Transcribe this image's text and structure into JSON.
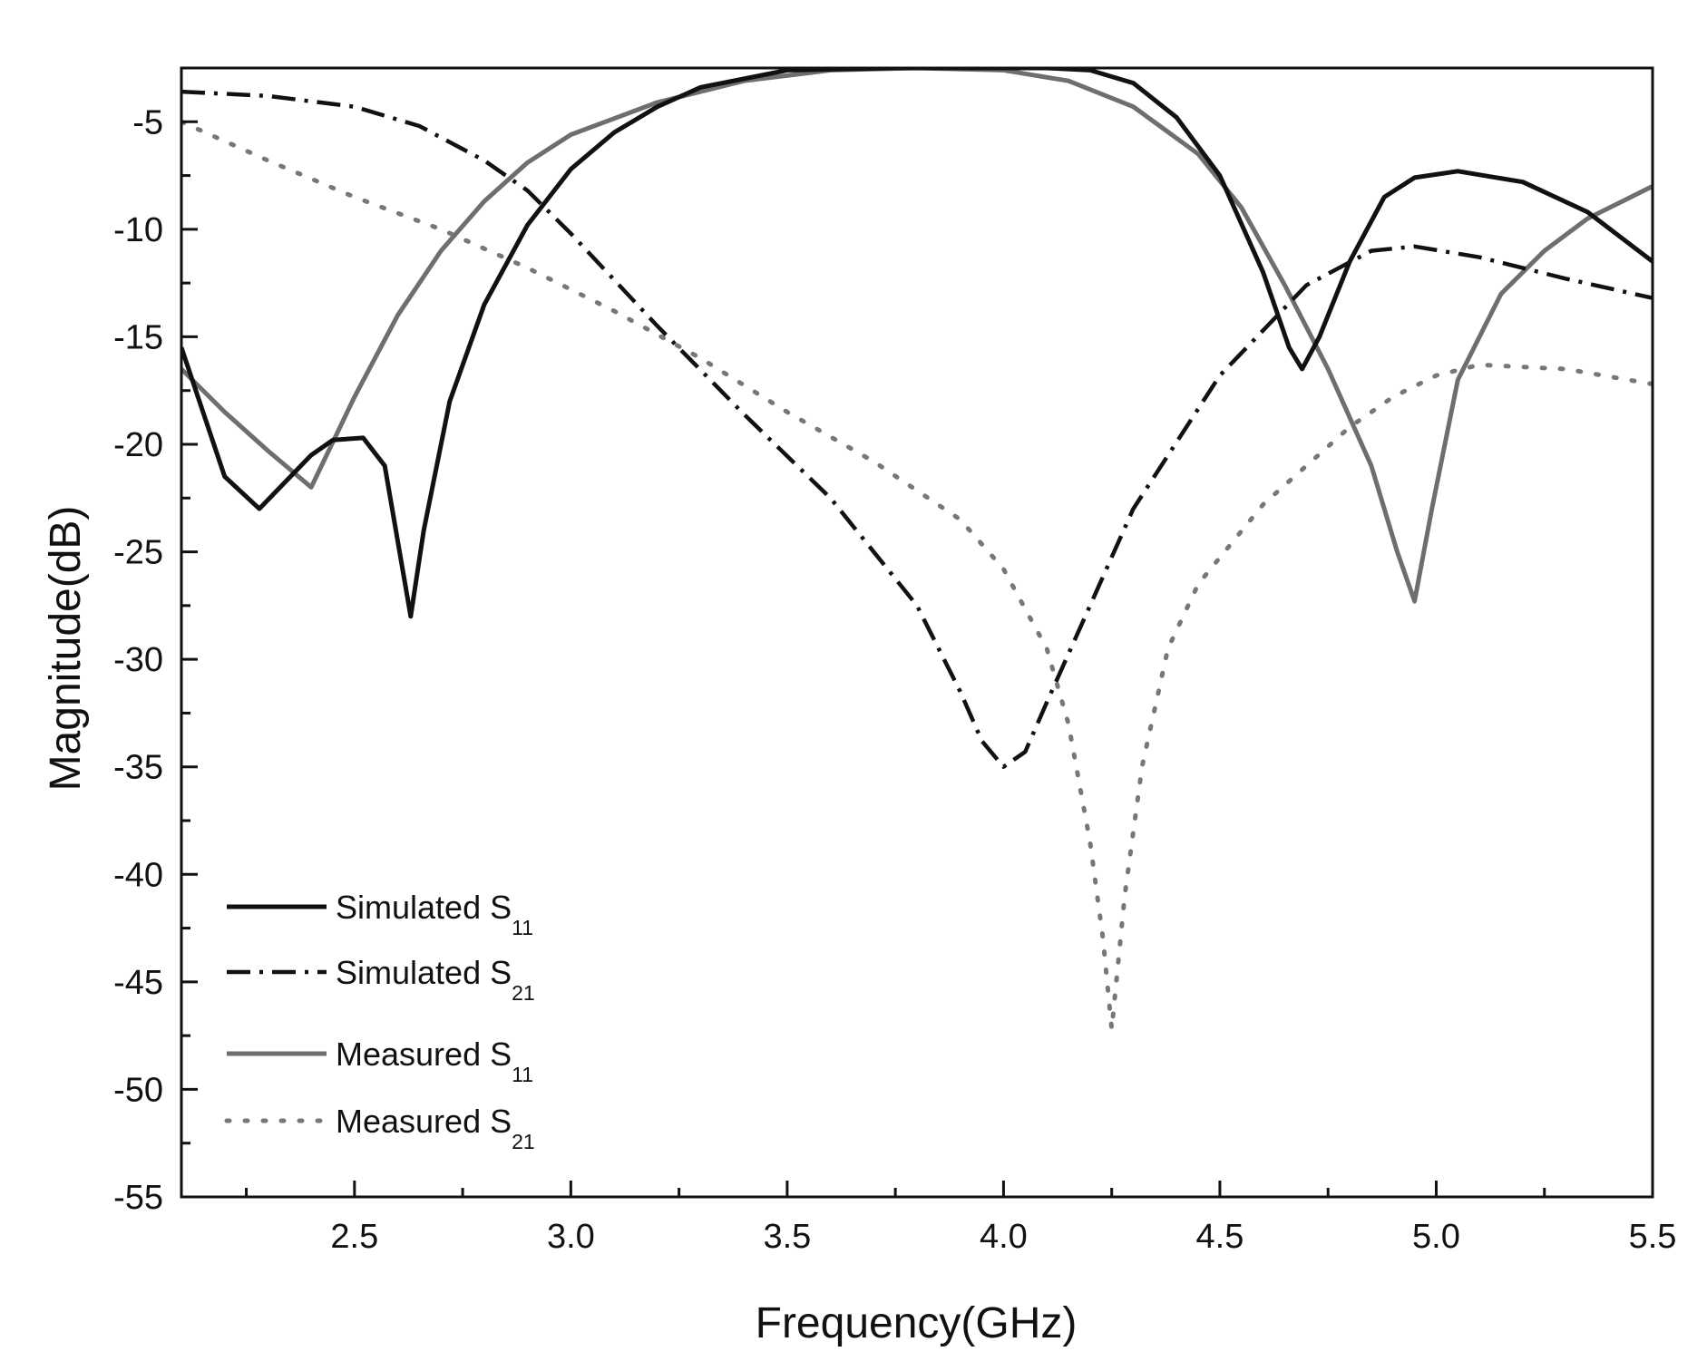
{
  "chart_data": {
    "type": "line",
    "title": "",
    "xlabel": "Frequency(GHz)",
    "ylabel": "Magnitude(dB)",
    "xlim": [
      2.1,
      5.5
    ],
    "ylim": [
      -55,
      -2.5
    ],
    "grid": false,
    "legend_position": "bottom-left",
    "x_ticks": [
      {
        "value": 2.5,
        "label": "2.5"
      },
      {
        "value": 3.0,
        "label": "3.0"
      },
      {
        "value": 3.5,
        "label": "3.5"
      },
      {
        "value": 4.0,
        "label": "4.0"
      },
      {
        "value": 4.5,
        "label": "4.5"
      },
      {
        "value": 5.0,
        "label": "5.0"
      },
      {
        "value": 5.5,
        "label": "5.5"
      }
    ],
    "y_ticks": [
      {
        "value": -5,
        "label": "-5"
      },
      {
        "value": -10,
        "label": "-10"
      },
      {
        "value": -15,
        "label": "-15"
      },
      {
        "value": -20,
        "label": "-20"
      },
      {
        "value": -25,
        "label": "-25"
      },
      {
        "value": -30,
        "label": "-30"
      },
      {
        "value": -35,
        "label": "-35"
      },
      {
        "value": -40,
        "label": "-40"
      },
      {
        "value": -45,
        "label": "-45"
      },
      {
        "value": -50,
        "label": "-50"
      },
      {
        "value": -55,
        "label": "-55"
      }
    ],
    "series": [
      {
        "name": "Simulated S11",
        "label_main": "Simulated S",
        "label_sub": "11",
        "style": "solid",
        "color": "#111111",
        "points": [
          [
            2.1,
            -15.5
          ],
          [
            2.2,
            -21.5
          ],
          [
            2.28,
            -23
          ],
          [
            2.4,
            -20.5
          ],
          [
            2.45,
            -19.8
          ],
          [
            2.52,
            -19.7
          ],
          [
            2.57,
            -21
          ],
          [
            2.63,
            -28
          ],
          [
            2.66,
            -24
          ],
          [
            2.72,
            -18
          ],
          [
            2.8,
            -13.5
          ],
          [
            2.9,
            -9.8
          ],
          [
            3.0,
            -7.2
          ],
          [
            3.1,
            -5.5
          ],
          [
            3.2,
            -4.3
          ],
          [
            3.3,
            -3.4
          ],
          [
            3.5,
            -2.6
          ],
          [
            3.75,
            -2.5
          ],
          [
            4.1,
            -2.5
          ],
          [
            4.2,
            -2.6
          ],
          [
            4.3,
            -3.2
          ],
          [
            4.4,
            -4.8
          ],
          [
            4.5,
            -7.5
          ],
          [
            4.6,
            -12
          ],
          [
            4.66,
            -15.5
          ],
          [
            4.69,
            -16.5
          ],
          [
            4.73,
            -15
          ],
          [
            4.8,
            -11.5
          ],
          [
            4.88,
            -8.5
          ],
          [
            4.95,
            -7.6
          ],
          [
            5.05,
            -7.3
          ],
          [
            5.2,
            -7.8
          ],
          [
            5.35,
            -9.2
          ],
          [
            5.5,
            -11.5
          ]
        ]
      },
      {
        "name": "Simulated S21",
        "label_main": "Simulated S",
        "label_sub": "21",
        "style": "dashdot",
        "color": "#111111",
        "points": [
          [
            2.1,
            -3.6
          ],
          [
            2.3,
            -3.8
          ],
          [
            2.5,
            -4.3
          ],
          [
            2.65,
            -5.2
          ],
          [
            2.8,
            -6.8
          ],
          [
            2.9,
            -8.2
          ],
          [
            3.0,
            -10.2
          ],
          [
            3.2,
            -14.5
          ],
          [
            3.4,
            -18.6
          ],
          [
            3.6,
            -22.5
          ],
          [
            3.8,
            -27.5
          ],
          [
            3.9,
            -31.5
          ],
          [
            3.95,
            -33.8
          ],
          [
            4.0,
            -35
          ],
          [
            4.05,
            -34.3
          ],
          [
            4.1,
            -32
          ],
          [
            4.2,
            -27.5
          ],
          [
            4.3,
            -23
          ],
          [
            4.5,
            -16.8
          ],
          [
            4.7,
            -12.6
          ],
          [
            4.85,
            -11
          ],
          [
            4.95,
            -10.8
          ],
          [
            5.1,
            -11.3
          ],
          [
            5.3,
            -12.3
          ],
          [
            5.5,
            -13.2
          ]
        ]
      },
      {
        "name": "Measured S11",
        "label_main": "Measured S",
        "label_sub": "11",
        "style": "solid",
        "color": "#6e6e6e",
        "points": [
          [
            2.1,
            -16.5
          ],
          [
            2.2,
            -18.5
          ],
          [
            2.3,
            -20.3
          ],
          [
            2.4,
            -22
          ],
          [
            2.5,
            -17.8
          ],
          [
            2.6,
            -14
          ],
          [
            2.7,
            -11
          ],
          [
            2.8,
            -8.7
          ],
          [
            2.9,
            -6.9
          ],
          [
            3.0,
            -5.6
          ],
          [
            3.2,
            -4.1
          ],
          [
            3.4,
            -3.1
          ],
          [
            3.6,
            -2.6
          ],
          [
            3.8,
            -2.5
          ],
          [
            4.0,
            -2.6
          ],
          [
            4.15,
            -3.1
          ],
          [
            4.3,
            -4.3
          ],
          [
            4.45,
            -6.5
          ],
          [
            4.55,
            -9
          ],
          [
            4.65,
            -12.6
          ],
          [
            4.75,
            -16.5
          ],
          [
            4.85,
            -21
          ],
          [
            4.91,
            -25
          ],
          [
            4.95,
            -27.3
          ],
          [
            4.99,
            -23
          ],
          [
            5.05,
            -17
          ],
          [
            5.15,
            -13
          ],
          [
            5.25,
            -11
          ],
          [
            5.35,
            -9.5
          ],
          [
            5.5,
            -8
          ]
        ]
      },
      {
        "name": "Measured S21",
        "label_main": "Measured S",
        "label_sub": "21",
        "style": "dotted",
        "color": "#777777",
        "points": [
          [
            2.1,
            -5
          ],
          [
            2.3,
            -6.8
          ],
          [
            2.5,
            -8.5
          ],
          [
            2.7,
            -10
          ],
          [
            2.9,
            -11.8
          ],
          [
            3.1,
            -13.8
          ],
          [
            3.3,
            -16
          ],
          [
            3.5,
            -18.5
          ],
          [
            3.7,
            -20.8
          ],
          [
            3.9,
            -23.5
          ],
          [
            4.0,
            -25.8
          ],
          [
            4.1,
            -29.5
          ],
          [
            4.15,
            -33
          ],
          [
            4.2,
            -38.5
          ],
          [
            4.23,
            -43
          ],
          [
            4.25,
            -47.2
          ],
          [
            4.28,
            -41
          ],
          [
            4.32,
            -35
          ],
          [
            4.38,
            -29.5
          ],
          [
            4.45,
            -26.5
          ],
          [
            4.6,
            -22.8
          ],
          [
            4.8,
            -19.2
          ],
          [
            4.9,
            -17.8
          ],
          [
            5.0,
            -16.8
          ],
          [
            5.1,
            -16.3
          ],
          [
            5.3,
            -16.5
          ],
          [
            5.5,
            -17.2
          ]
        ]
      }
    ]
  }
}
